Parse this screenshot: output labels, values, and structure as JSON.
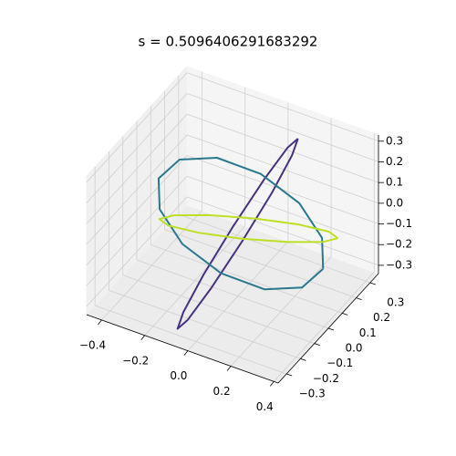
{
  "chart_data": {
    "type": "line3d",
    "title": "s = 0.5096406291683292",
    "xlim": [
      -0.47,
      0.42
    ],
    "ylim": [
      -0.36,
      0.36
    ],
    "zlim": [
      -0.34,
      0.33
    ],
    "xticks": [
      {
        "value": -0.4,
        "label": "−0.4"
      },
      {
        "value": -0.2,
        "label": "−0.2"
      },
      {
        "value": 0,
        "label": "0.0"
      },
      0.2,
      0.4
    ],
    "yticks": [
      {
        "value": -0.3,
        "label": "−0.3"
      },
      {
        "value": -0.2,
        "label": "−0.2"
      },
      {
        "value": -0.1,
        "label": "−0.1"
      },
      {
        "value": 0,
        "label": "0.0"
      },
      0.1,
      0.2,
      0.3
    ],
    "zticks": [
      {
        "value": -0.3,
        "label": "−0.3"
      },
      {
        "value": -0.2,
        "label": "−0.2"
      },
      {
        "value": -0.1,
        "label": "−0.1"
      },
      {
        "value": 0,
        "label": "0.0"
      },
      0.1,
      0.2,
      0.3
    ],
    "grid": true,
    "series": [
      {
        "color": "#46327e",
        "x": [
          0.13,
          0.136,
          0.113,
          0.065,
          0.007,
          -0.046,
          -0.08,
          -0.086,
          -0.063,
          -0.015,
          0.043,
          0.096,
          0.13
        ],
        "y": [
          0.23,
          0.179,
          0.069,
          -0.07,
          -0.201,
          -0.289,
          -0.31,
          -0.259,
          -0.149,
          -0.01,
          0.121,
          0.209,
          0.23
        ],
        "z": [
          0.3,
          0.26,
          0.15,
          0,
          -0.15,
          -0.26,
          -0.3,
          -0.26,
          -0.15,
          0,
          0.15,
          0.26,
          0.3
        ]
      },
      {
        "color": "#2a788e",
        "x": [
          0.37,
          0.298,
          0.152,
          -0.03,
          -0.198,
          -0.308,
          -0.33,
          -0.258,
          -0.112,
          0.07,
          0.238,
          0.348,
          0.37
        ],
        "y": [
          0.04,
          0.143,
          0.206,
          0.21,
          0.156,
          0.057,
          -0.06,
          -0.163,
          -0.226,
          -0.23,
          -0.176,
          -0.077,
          0.04
        ],
        "z": [
          -0.1,
          -0.053,
          0.014,
          0.085,
          0.14,
          0.163,
          0.15,
          0.103,
          0.036,
          -0.035,
          -0.09,
          -0.113,
          -0.1
        ]
      },
      {
        "color": "#bddf26",
        "x": [
          0.39,
          0.342,
          0.21,
          0.03,
          -0.15,
          -0.282,
          -0.33,
          -0.282,
          -0.15,
          0.03,
          0.21,
          0.342,
          0.39
        ],
        "y": [
          0.115,
          0.124,
          0.108,
          0.07,
          0.022,
          -0.024,
          -0.055,
          -0.064,
          -0.048,
          -0.01,
          0.038,
          0.084,
          0.115
        ],
        "z": [
          0,
          0.007,
          0.005,
          -0.005,
          -0.021,
          -0.037,
          -0.05,
          -0.057,
          -0.055,
          -0.045,
          -0.029,
          -0.013,
          0
        ]
      }
    ]
  }
}
